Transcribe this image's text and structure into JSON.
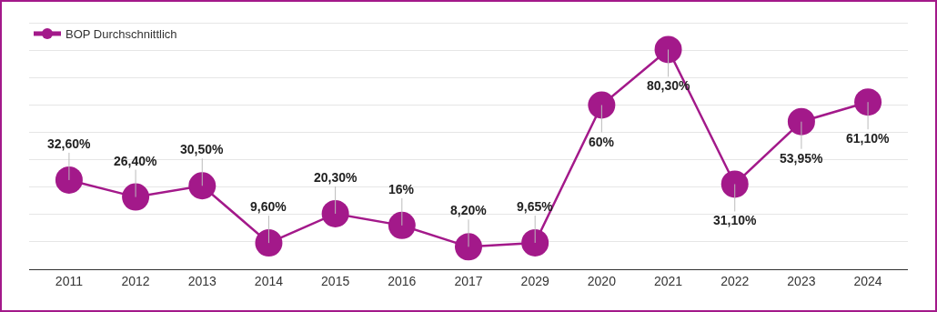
{
  "chart_data": {
    "type": "line",
    "categories": [
      "2011",
      "2012",
      "2013",
      "2014",
      "2015",
      "2016",
      "2017",
      "2029",
      "2020",
      "2021",
      "2022",
      "2023",
      "2024"
    ],
    "series": [
      {
        "name": "BOP Durchschnittlich",
        "color": "#a3198a",
        "values": [
          32.6,
          26.4,
          30.5,
          9.6,
          20.3,
          16,
          8.2,
          9.65,
          60,
          80.3,
          31.1,
          53.95,
          61.1
        ],
        "value_labels": [
          "32,60%",
          "26,40%",
          "30,50%",
          "9,60%",
          "20,30%",
          "16%",
          "8,20%",
          "9,65%",
          "60%",
          "80,30%",
          "31,10%",
          "53,95%",
          "61,10%"
        ]
      }
    ],
    "grid": "y",
    "tick_labels": "x",
    "legend": "top left",
    "marker": "circle",
    "line_style": "solid"
  }
}
